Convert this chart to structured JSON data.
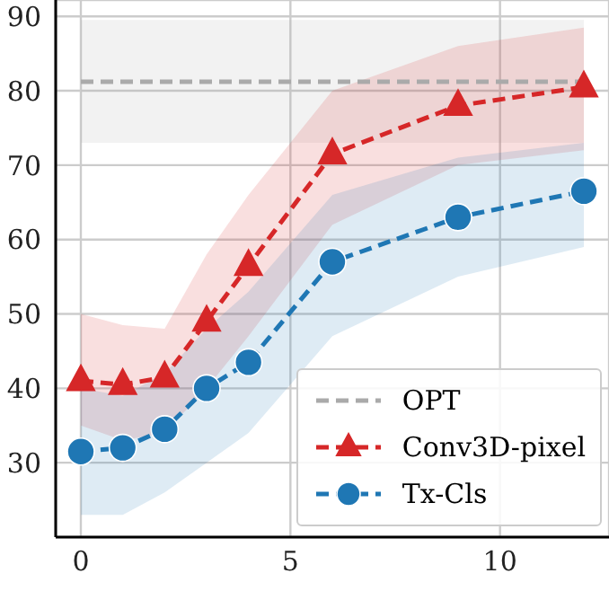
{
  "chart_data": {
    "type": "line",
    "legend": "bottom right",
    "grid": true,
    "line_style": "dashed",
    "xlim": [
      -0.6,
      12.6
    ],
    "xticks": [
      0,
      5,
      10
    ],
    "ylim": [
      20,
      92.2
    ],
    "yticks": [
      30,
      40,
      50,
      60,
      70,
      80,
      90
    ],
    "series": [
      {
        "name": "OPT",
        "color": "#aaaaaa",
        "marker": "none",
        "x": [
          0,
          12
        ],
        "values": [
          81.2,
          81.2
        ],
        "lower": [
          73,
          73
        ],
        "upper": [
          89.5,
          89.5
        ]
      },
      {
        "name": "Conv3D-pixel",
        "color": "#d62728",
        "marker": "triangle",
        "x": [
          0,
          1,
          2,
          3,
          4,
          6,
          9,
          12
        ],
        "values": [
          41,
          40.5,
          41.5,
          49,
          56.5,
          71.5,
          78,
          80.5
        ],
        "lower": [
          35,
          33,
          34,
          40,
          47,
          62,
          70,
          72
        ],
        "upper": [
          50,
          48.5,
          48,
          58,
          66,
          80,
          86,
          88.5
        ]
      },
      {
        "name": "Tx-Cls",
        "color": "#1f77b4",
        "marker": "circle",
        "x": [
          0,
          1,
          2,
          3,
          4,
          6,
          9,
          12
        ],
        "values": [
          31.5,
          32,
          34.5,
          40,
          43.5,
          57,
          63,
          66.5
        ],
        "lower": [
          23,
          23,
          26,
          30,
          34,
          47,
          55,
          59
        ],
        "upper": [
          40,
          39,
          42,
          48,
          53,
          66,
          71,
          73
        ]
      }
    ]
  }
}
